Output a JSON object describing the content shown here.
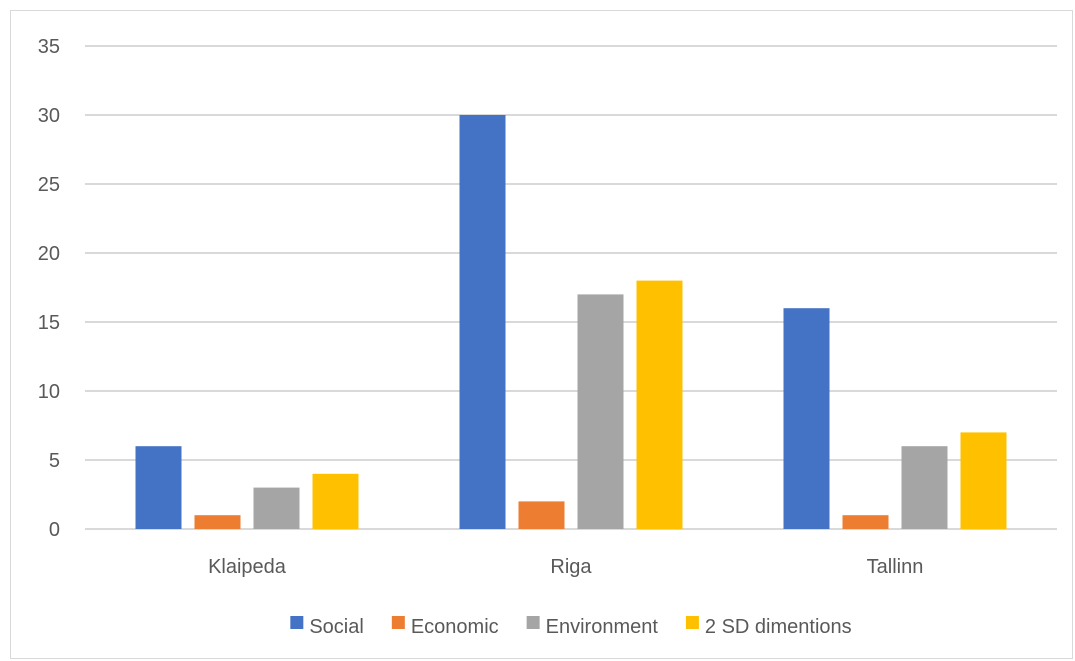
{
  "chart_data": {
    "type": "bar",
    "categories": [
      "Klaipeda",
      "Riga",
      "Tallinn"
    ],
    "series": [
      {
        "name": "Social",
        "values": [
          6,
          30,
          16
        ],
        "color": "#4472c4"
      },
      {
        "name": "Economic",
        "values": [
          1,
          2,
          1
        ],
        "color": "#ed7d31"
      },
      {
        "name": "Environment",
        "values": [
          3,
          17,
          6
        ],
        "color": "#a5a5a5"
      },
      {
        "name": "2 SD dimentions",
        "values": [
          4,
          18,
          7
        ],
        "color": "#ffc000"
      }
    ],
    "yticks": [
      "0",
      "5",
      "10",
      "15",
      "20",
      "25",
      "30",
      "35"
    ],
    "ylim": [
      0,
      35
    ],
    "grid": true,
    "legend_position": "bottom",
    "title": "",
    "xlabel": "",
    "ylabel": ""
  }
}
